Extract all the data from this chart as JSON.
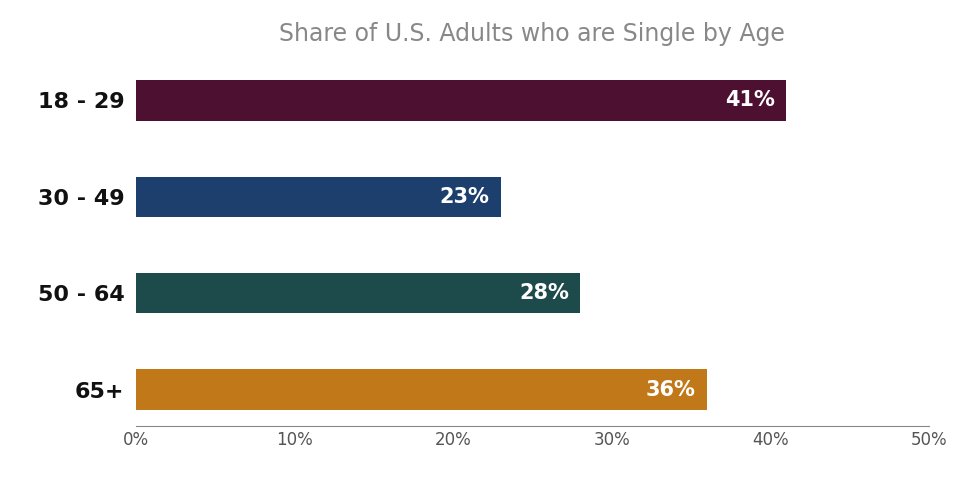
{
  "title": "Share of U.S. Adults who are Single by Age",
  "categories": [
    "18 - 29",
    "30 - 49",
    "50 - 64",
    "65+"
  ],
  "values": [
    41,
    23,
    28,
    36
  ],
  "bar_colors": [
    "#4d1030",
    "#1d3f6e",
    "#1d4a4a",
    "#c07818"
  ],
  "label_color": "#ffffff",
  "title_color": "#888888",
  "tick_label_color": "#555555",
  "ytick_label_color": "#111111",
  "background_color": "#ffffff",
  "xlim": [
    0,
    50
  ],
  "xticks": [
    0,
    10,
    20,
    30,
    40,
    50
  ],
  "bar_height": 0.42,
  "title_fontsize": 17,
  "label_fontsize": 15,
  "tick_fontsize": 12,
  "ytick_fontsize": 16
}
